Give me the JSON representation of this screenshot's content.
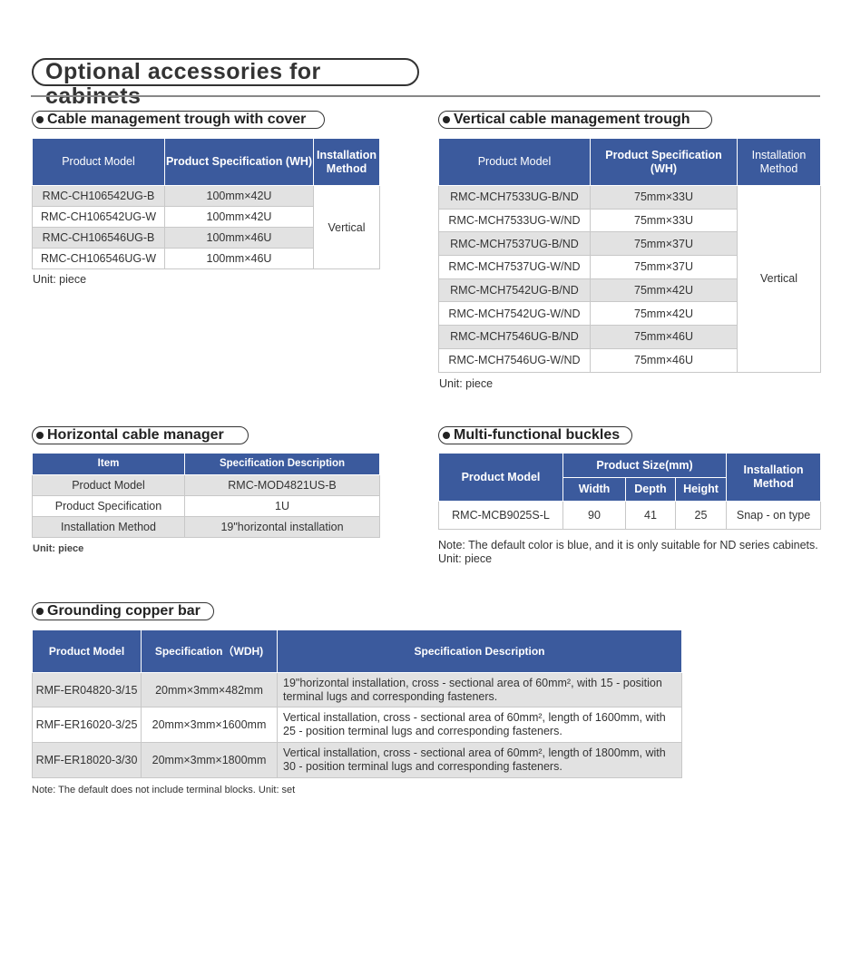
{
  "title": "Optional accessories for cabinets",
  "header_color": "#3b5a9d",
  "cable_trough": {
    "heading": "Cable management trough with cover",
    "headers": [
      "Product Model",
      "Product Specification (WH)",
      "Installation Method"
    ],
    "rows": [
      [
        "RMC-CH106542UG-B",
        "100mm×42U"
      ],
      [
        "RMC-CH106542UG-W",
        "100mm×42U"
      ],
      [
        "RMC-CH106546UG-B",
        "100mm×46U"
      ],
      [
        "RMC-CH106546UG-W",
        "100mm×46U"
      ]
    ],
    "installation": "Vertical",
    "unit": "Unit: piece"
  },
  "vertical_trough": {
    "heading": "Vertical cable management trough",
    "headers": [
      "Product Model",
      "Product Specification (WH)",
      "Installation Method"
    ],
    "rows": [
      [
        "RMC-MCH7533UG-B/ND",
        "75mm×33U"
      ],
      [
        "RMC-MCH7533UG-W/ND",
        "75mm×33U"
      ],
      [
        "RMC-MCH7537UG-B/ND",
        "75mm×37U"
      ],
      [
        "RMC-MCH7537UG-W/ND",
        "75mm×37U"
      ],
      [
        "RMC-MCH7542UG-B/ND",
        "75mm×42U"
      ],
      [
        "RMC-MCH7542UG-W/ND",
        "75mm×42U"
      ],
      [
        "RMC-MCH7546UG-B/ND",
        "75mm×46U"
      ],
      [
        "RMC-MCH7546UG-W/ND",
        "75mm×46U"
      ]
    ],
    "installation": "Vertical",
    "unit": "Unit: piece"
  },
  "horizontal_manager": {
    "heading": "Horizontal cable manager",
    "headers": [
      "Item",
      "Specification Description"
    ],
    "rows": [
      [
        "Product Model",
        "RMC-MOD4821US-B"
      ],
      [
        "Product Specification",
        "1U"
      ],
      [
        "Installation Method",
        "19\"horizontal installation"
      ]
    ],
    "unit": "Unit: piece"
  },
  "buckles": {
    "heading": "Multi-functional buckles",
    "headers": {
      "model": "Product Model",
      "size": "Product Size(mm)",
      "width": "Width",
      "depth": "Depth",
      "height": "Height",
      "install": "Installation Method"
    },
    "row": {
      "model": "RMC-MCB9025S-L",
      "width": "90",
      "depth": "41",
      "height": "25",
      "install": "Snap - on type"
    },
    "note": "Note: The default color is blue, and it is only suitable for ND series cabinets.",
    "unit": "Unit: piece"
  },
  "copper_bar": {
    "heading": "Grounding copper bar",
    "headers": [
      "Product Model",
      "Specification（WDH)",
      "Specification Description"
    ],
    "rows": [
      [
        "RMF-ER04820-3/15",
        "20mm×3mm×482mm",
        "19\"horizontal installation, cross - sectional area of 60mm², with 15 - position terminal lugs and corresponding fasteners."
      ],
      [
        "RMF-ER16020-3/25",
        "20mm×3mm×1600mm",
        "Vertical installation, cross - sectional area of 60mm², length of 1600mm, with 25 - position terminal lugs and corresponding fasteners."
      ],
      [
        "RMF-ER18020-3/30",
        "20mm×3mm×1800mm",
        "Vertical installation, cross - sectional area of 60mm², length of 1800mm, with 30 - position terminal lugs and corresponding fasteners."
      ]
    ],
    "note": "Note: The default does not include terminal blocks. Unit: set"
  }
}
